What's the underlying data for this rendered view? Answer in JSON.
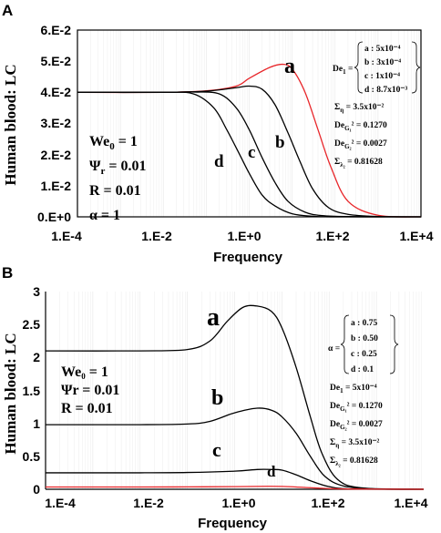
{
  "chart_data": [
    {
      "panel": "A",
      "type": "line",
      "xlabel": "Frequency",
      "ylabel": "Human blood: LC",
      "xscale": "log",
      "xlim": [
        0.0001,
        10000
      ],
      "ylim": [
        0,
        0.06
      ],
      "x_ticks": [
        "1.E-4",
        "1.E-2",
        "1.E+0",
        "1.E+2",
        "1.E+4"
      ],
      "y_ticks": [
        "0.E+0",
        "1.E-2",
        "2.E-2",
        "3.E-2",
        "4.E-2",
        "5.E-2",
        "6.E-2"
      ],
      "series": [
        {
          "name": "a",
          "color": "#e8262a",
          "x": [
            0.0001,
            0.01,
            0.1,
            0.5,
            1,
            3,
            6,
            10,
            20,
            40,
            80,
            200,
            1000,
            10000
          ],
          "y": [
            0.04,
            0.04,
            0.0405,
            0.042,
            0.0445,
            0.048,
            0.049,
            0.0475,
            0.04,
            0.028,
            0.016,
            0.005,
            0.0005,
            0.0
          ]
        },
        {
          "name": "b",
          "color": "#000000",
          "x": [
            0.0001,
            0.01,
            0.1,
            0.5,
            1,
            2,
            4,
            8,
            15,
            30,
            70,
            200,
            1000,
            10000
          ],
          "y": [
            0.04,
            0.04,
            0.0404,
            0.0415,
            0.042,
            0.041,
            0.036,
            0.027,
            0.018,
            0.009,
            0.003,
            0.0008,
            0.0001,
            0.0
          ]
        },
        {
          "name": "c",
          "color": "#000000",
          "x": [
            0.0001,
            0.01,
            0.05,
            0.2,
            0.5,
            1,
            2,
            4,
            8,
            20,
            50,
            200,
            10000
          ],
          "y": [
            0.04,
            0.04,
            0.0401,
            0.0395,
            0.035,
            0.028,
            0.019,
            0.011,
            0.005,
            0.0015,
            0.0004,
            0.0001,
            0.0
          ]
        },
        {
          "name": "d",
          "color": "#000000",
          "x": [
            0.0001,
            0.01,
            0.05,
            0.15,
            0.3,
            0.6,
            1,
            2,
            4,
            10,
            30,
            100,
            10000
          ],
          "y": [
            0.04,
            0.04,
            0.0395,
            0.035,
            0.028,
            0.02,
            0.014,
            0.007,
            0.0035,
            0.001,
            0.0002,
            0.0,
            0.0
          ]
        }
      ],
      "curve_labels": [
        "a",
        "b",
        "c",
        "d"
      ],
      "params_left": [
        "We",
        "0",
        " = 1",
        "Ψ",
        "r",
        " = 0.01",
        "R = 0.01",
        "α = 1"
      ],
      "legend_box": {
        "prefix": "De",
        "prefix_sub": "1",
        "items": [
          "a : 5x10⁻⁴",
          "b : 3x10⁻⁴",
          "c : 1x10⁻⁴",
          "d : 8.7x10⁻³"
        ],
        "lines": [
          "Σ",
          "η",
          " = 3.5x10⁻²",
          "De",
          "G₁",
          "² = 0.1270",
          "De",
          "G₂",
          "² = 0.0027",
          "Σ",
          "λ₂",
          " = 0.81628"
        ]
      }
    },
    {
      "panel": "B",
      "type": "line",
      "xlabel": "Frequency",
      "ylabel": "Human blood: LC",
      "xscale": "log",
      "xlim": [
        0.0001,
        10000
      ],
      "ylim": [
        0,
        3
      ],
      "x_ticks": [
        "1.E-4",
        "1.E-2",
        "1.E+0",
        "1.E+2",
        "1.E+4"
      ],
      "y_ticks": [
        "0",
        "0.5",
        "1",
        "1.5",
        "2",
        "2.5",
        "3"
      ],
      "series": [
        {
          "name": "a",
          "color": "#000000",
          "x": [
            0.0001,
            0.01,
            0.1,
            0.3,
            0.7,
            1.5,
            3,
            6,
            10,
            20,
            40,
            70,
            150,
            500,
            10000
          ],
          "y": [
            2.1,
            2.1,
            2.12,
            2.25,
            2.55,
            2.76,
            2.78,
            2.7,
            2.45,
            1.85,
            1.1,
            0.55,
            0.15,
            0.02,
            0.0
          ]
        },
        {
          "name": "b",
          "color": "#000000",
          "x": [
            0.0001,
            0.01,
            0.1,
            0.3,
            1,
            3,
            6,
            10,
            20,
            40,
            80,
            200,
            1000,
            10000
          ],
          "y": [
            0.98,
            0.98,
            0.99,
            1.03,
            1.16,
            1.23,
            1.2,
            1.1,
            0.85,
            0.5,
            0.2,
            0.05,
            0.005,
            0.0
          ]
        },
        {
          "name": "c",
          "color": "#000000",
          "x": [
            0.0001,
            0.01,
            0.1,
            1,
            3,
            6,
            10,
            20,
            40,
            100,
            300,
            10000
          ],
          "y": [
            0.25,
            0.25,
            0.255,
            0.275,
            0.3,
            0.3,
            0.29,
            0.22,
            0.13,
            0.04,
            0.005,
            0.0
          ]
        },
        {
          "name": "d",
          "color": "#e8262a",
          "x": [
            0.0001,
            0.01,
            0.1,
            1,
            5,
            10,
            20,
            50,
            200,
            10000
          ],
          "y": [
            0.035,
            0.035,
            0.036,
            0.04,
            0.045,
            0.043,
            0.035,
            0.02,
            0.005,
            0.0
          ]
        }
      ],
      "curve_labels": [
        "a",
        "b",
        "c",
        "d"
      ],
      "params_left": [
        "We",
        "0",
        " = 1",
        "Ψr = 0.01",
        "R = 0.01"
      ],
      "legend_box": {
        "prefix": "α",
        "items": [
          "a : 0.75",
          "b : 0.50",
          "c : 0.25",
          "d : 0.1"
        ],
        "lines": [
          "De",
          "1",
          " = 5x10⁻⁴",
          "De",
          "G₁",
          "² = 0.1270",
          "De",
          "G₂",
          "² = 0.0027",
          "Σ",
          "η",
          " = 3.5x10⁻²",
          "Σ",
          "λ₂",
          " = 0.81628"
        ]
      }
    }
  ]
}
